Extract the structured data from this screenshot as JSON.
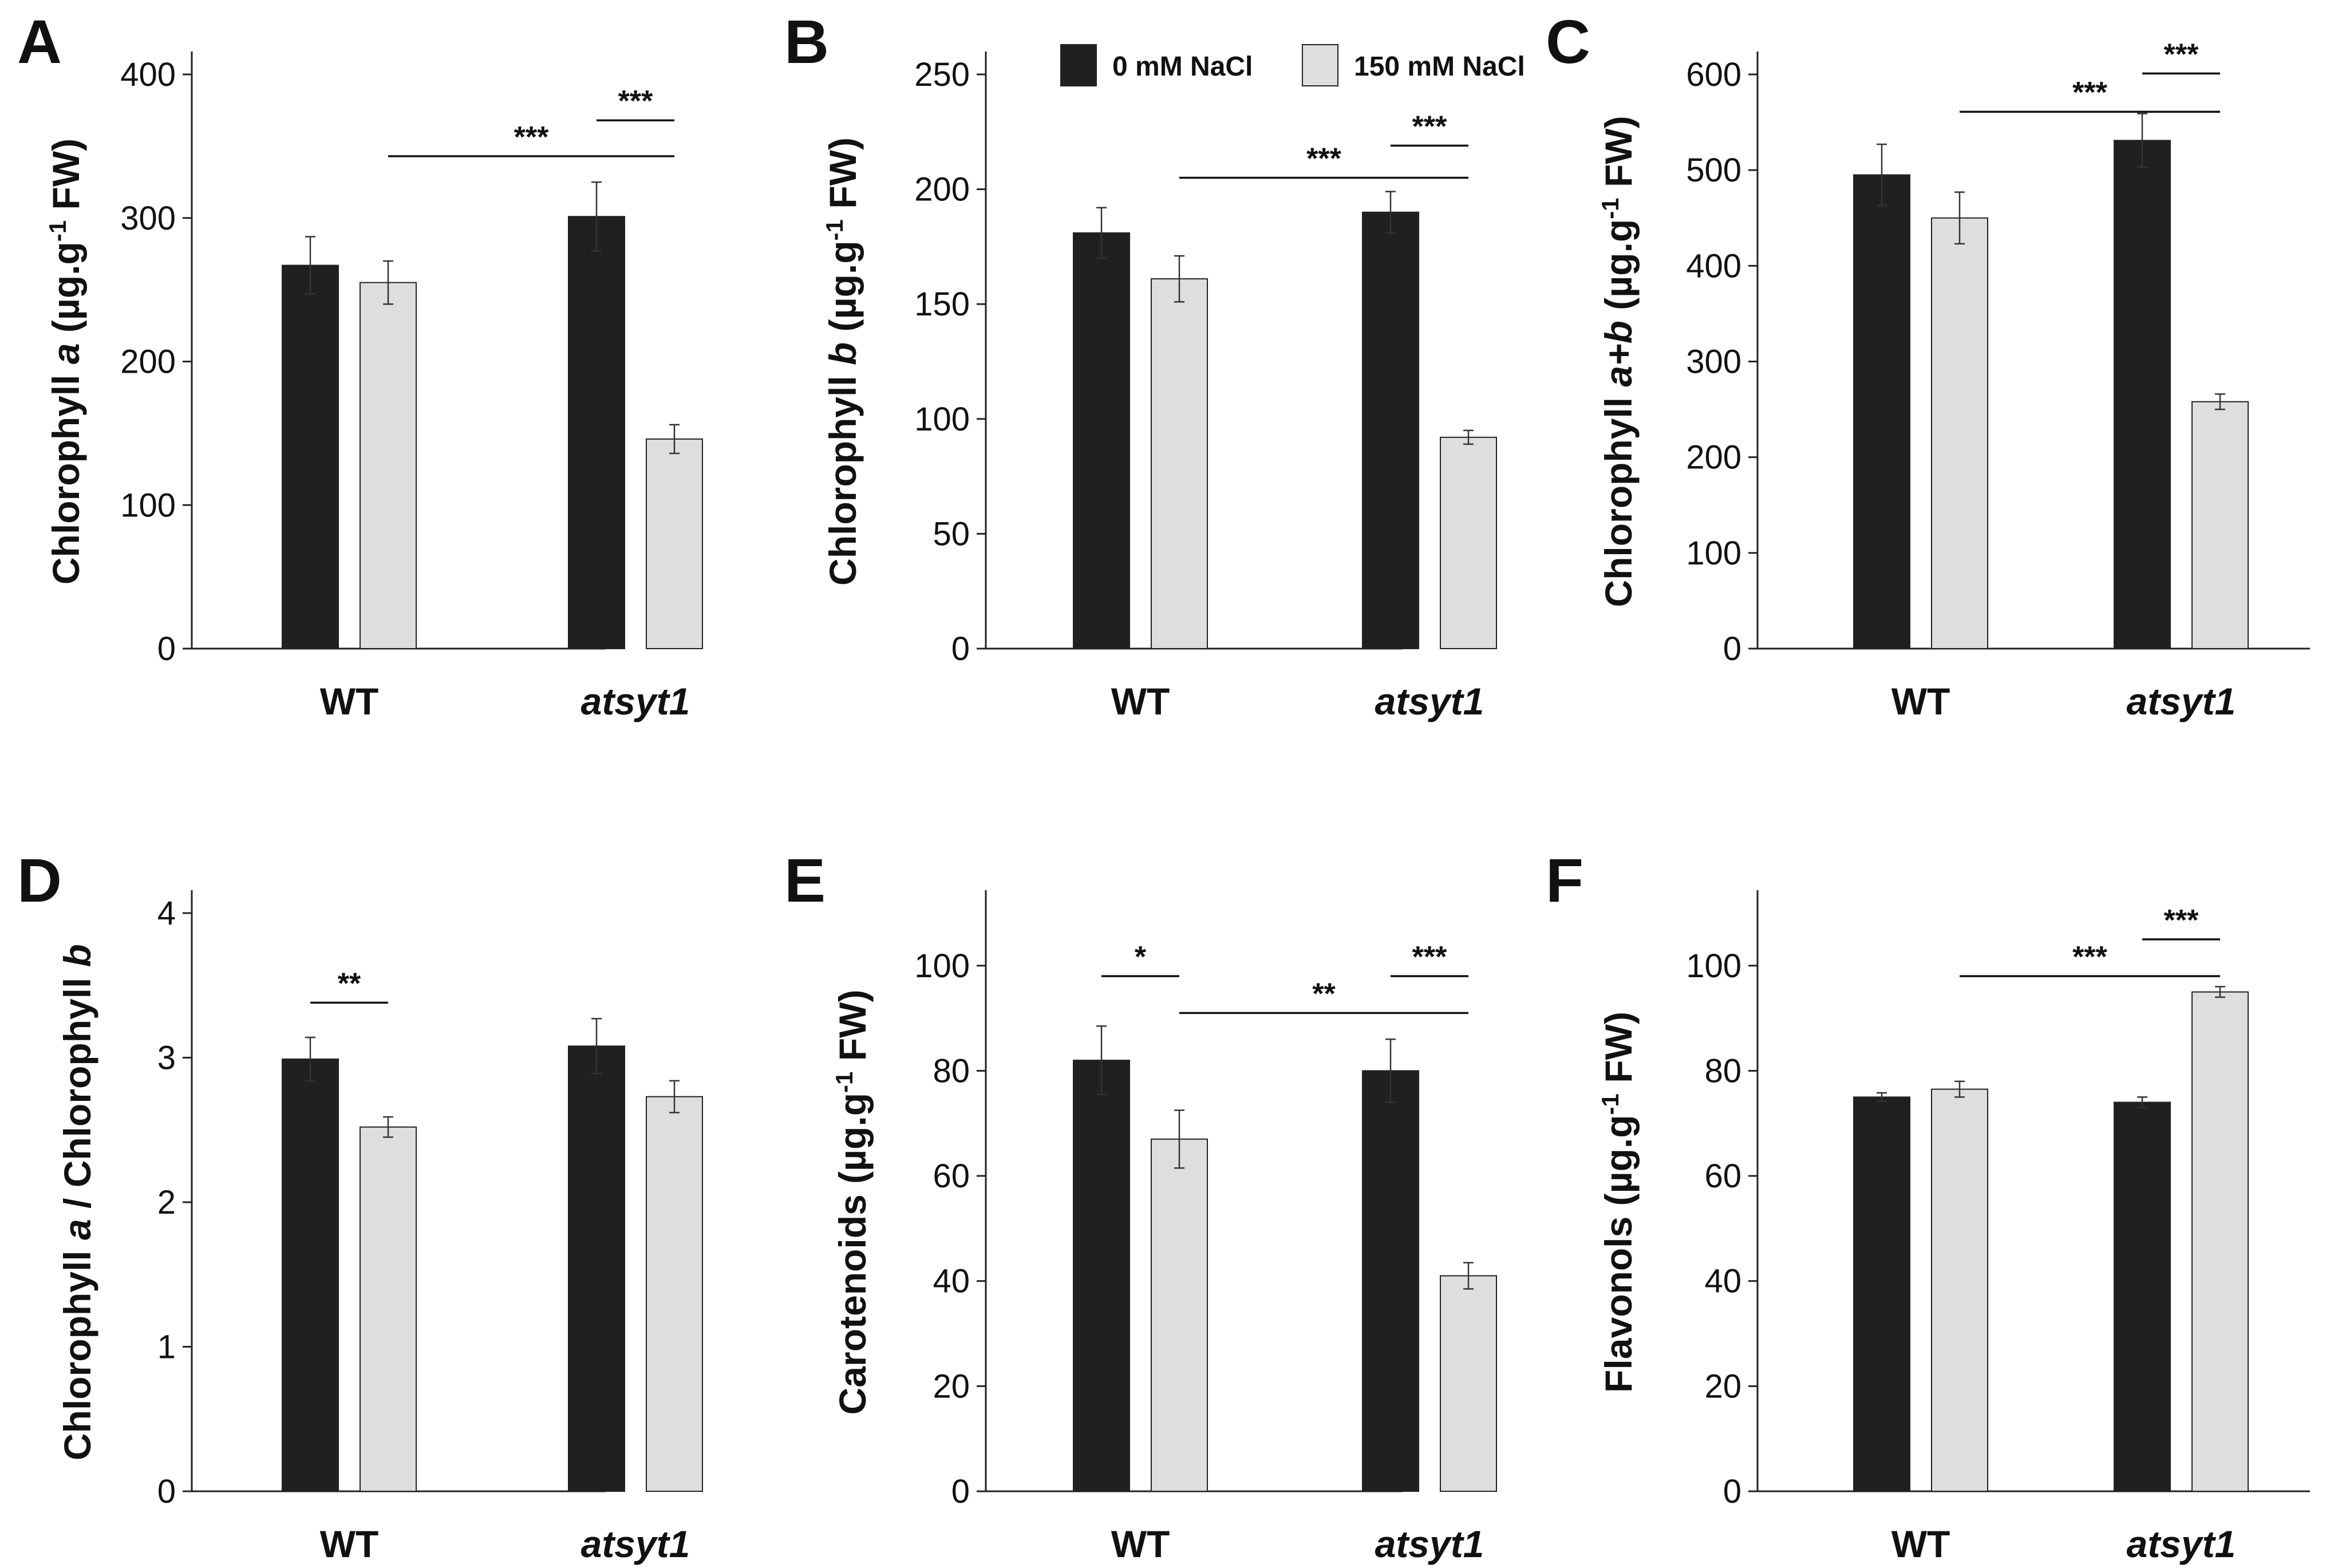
{
  "figure": {
    "legend": [
      {
        "label": "0 mM NaCl",
        "color": "#202020"
      },
      {
        "label": "150 mM NaCl",
        "color": "#d9d9d9"
      }
    ],
    "colors": {
      "bar_dark": "#202020",
      "bar_light": "#dedede",
      "axis": "#222222",
      "text": "#111111"
    }
  },
  "chart_data": [
    {
      "type": "bar",
      "panel_letter": "A",
      "ylabel_parts": [
        "Chlorophyll ",
        "a",
        " (µg.g",
        "-1",
        " FW)"
      ],
      "categories": [
        {
          "label": "WT",
          "italic": false
        },
        {
          "label": "atsyt1",
          "italic": true
        }
      ],
      "yticks": [
        "0",
        "100",
        "200",
        "300",
        "400"
      ],
      "ylim": [
        0,
        400
      ],
      "series": [
        {
          "name": "0 mM NaCl",
          "values": [
            267,
            301
          ],
          "errors": [
            20,
            24
          ]
        },
        {
          "name": "150 mM NaCl",
          "values": [
            255,
            146
          ],
          "errors": [
            15,
            10
          ]
        }
      ],
      "significance": [
        {
          "label": "***",
          "from": [
            1,
            0
          ],
          "to": [
            1,
            1
          ],
          "y": 368
        },
        {
          "label": "***",
          "from": [
            0,
            1
          ],
          "to": [
            1,
            1
          ],
          "y": 343
        }
      ]
    },
    {
      "type": "bar",
      "panel_letter": "B",
      "ylabel_parts": [
        "Chlorophyll ",
        "b",
        " (µg.g",
        "-1",
        " FW)"
      ],
      "categories": [
        {
          "label": "WT",
          "italic": false
        },
        {
          "label": "atsyt1",
          "italic": true
        }
      ],
      "yticks": [
        "0",
        "50",
        "100",
        "150",
        "200",
        "250"
      ],
      "ylim": [
        0,
        250
      ],
      "series": [
        {
          "name": "0 mM NaCl",
          "values": [
            181,
            190
          ],
          "errors": [
            11,
            9
          ]
        },
        {
          "name": "150 mM NaCl",
          "values": [
            161,
            92
          ],
          "errors": [
            10,
            3
          ]
        }
      ],
      "significance": [
        {
          "label": "***",
          "from": [
            1,
            0
          ],
          "to": [
            1,
            1
          ],
          "y": 219
        },
        {
          "label": "***",
          "from": [
            0,
            1
          ],
          "to": [
            1,
            1
          ],
          "y": 205
        }
      ],
      "show_legend": true
    },
    {
      "type": "bar",
      "panel_letter": "C",
      "ylabel_parts": [
        "Chlorophyll ",
        "a+b",
        " (µg.g",
        "-1",
        " FW)"
      ],
      "categories": [
        {
          "label": "WT",
          "italic": false
        },
        {
          "label": "atsyt1",
          "italic": true
        }
      ],
      "yticks": [
        "0",
        "100",
        "200",
        "300",
        "400",
        "500",
        "600"
      ],
      "ylim": [
        0,
        600
      ],
      "series": [
        {
          "name": "0 mM NaCl",
          "values": [
            495,
            531
          ],
          "errors": [
            32,
            28
          ]
        },
        {
          "name": "150 mM NaCl",
          "values": [
            450,
            258
          ],
          "errors": [
            27,
            8
          ]
        }
      ],
      "significance": [
        {
          "label": "***",
          "from": [
            1,
            0
          ],
          "to": [
            1,
            1
          ],
          "y": 601
        },
        {
          "label": "***",
          "from": [
            0,
            1
          ],
          "to": [
            1,
            1
          ],
          "y": 561
        }
      ]
    },
    {
      "type": "bar",
      "panel_letter": "D",
      "ylabel_parts": [
        "Chlorophyll ",
        "a",
        " / Chlorophyll ",
        "b"
      ],
      "categories": [
        {
          "label": "WT",
          "italic": false
        },
        {
          "label": "atsyt1",
          "italic": true
        }
      ],
      "yticks": [
        "0",
        "1",
        "2",
        "3",
        "4"
      ],
      "ylim": [
        0,
        4
      ],
      "series": [
        {
          "name": "0 mM NaCl",
          "values": [
            2.99,
            3.08
          ],
          "errors": [
            0.15,
            0.19
          ]
        },
        {
          "name": "150 mM NaCl",
          "values": [
            2.52,
            2.73
          ],
          "errors": [
            0.07,
            0.11
          ]
        }
      ],
      "significance": [
        {
          "label": "**",
          "from": [
            0,
            0
          ],
          "to": [
            0,
            1
          ],
          "y": 3.38
        }
      ]
    },
    {
      "type": "bar",
      "panel_letter": "E",
      "ylabel_parts": [
        "Carotenoids (µg.g",
        "-1",
        " FW)"
      ],
      "categories": [
        {
          "label": "WT",
          "italic": false
        },
        {
          "label": "atsyt1",
          "italic": true
        }
      ],
      "yticks": [
        "0",
        "20",
        "40",
        "60",
        "80",
        "100"
      ],
      "ylim": [
        0,
        110
      ],
      "series": [
        {
          "name": "0 mM NaCl",
          "values": [
            82,
            80
          ],
          "errors": [
            6.5,
            6
          ]
        },
        {
          "name": "150 mM NaCl",
          "values": [
            67,
            41
          ],
          "errors": [
            5.5,
            2.5
          ]
        }
      ],
      "significance": [
        {
          "label": "*",
          "from": [
            0,
            0
          ],
          "to": [
            0,
            1
          ],
          "y": 98
        },
        {
          "label": "***",
          "from": [
            1,
            0
          ],
          "to": [
            1,
            1
          ],
          "y": 98
        },
        {
          "label": "**",
          "from": [
            0,
            1
          ],
          "to": [
            1,
            1
          ],
          "y": 91
        }
      ]
    },
    {
      "type": "bar",
      "panel_letter": "F",
      "ylabel_parts": [
        "Flavonols (µg.g",
        "-1",
        " FW)"
      ],
      "categories": [
        {
          "label": "WT",
          "italic": false
        },
        {
          "label": "atsyt1",
          "italic": true
        }
      ],
      "yticks": [
        "0",
        "20",
        "40",
        "60",
        "80",
        "100"
      ],
      "ylim": [
        0,
        110
      ],
      "series": [
        {
          "name": "0 mM NaCl",
          "values": [
            75,
            74
          ],
          "errors": [
            0.8,
            1
          ]
        },
        {
          "name": "150 mM NaCl",
          "values": [
            76.5,
            95
          ],
          "errors": [
            1.5,
            1
          ]
        }
      ],
      "significance": [
        {
          "label": "***",
          "from": [
            1,
            0
          ],
          "to": [
            1,
            1
          ],
          "y": 105
        },
        {
          "label": "***",
          "from": [
            0,
            1
          ],
          "to": [
            1,
            1
          ],
          "y": 98
        }
      ]
    }
  ]
}
